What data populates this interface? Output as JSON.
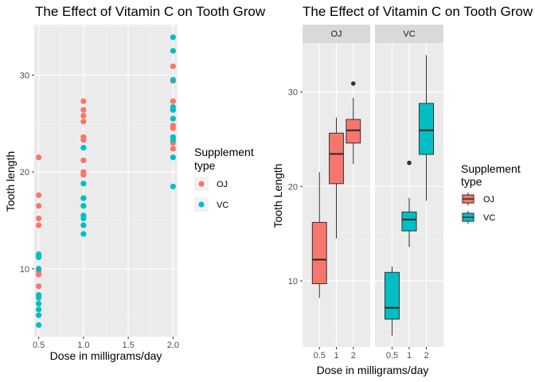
{
  "chart_data": [
    {
      "type": "scatter",
      "title": "The Effect of Vitamin C on Tooth Grow",
      "xlabel": "Dose in milligrams/day",
      "ylabel": "Tooth length",
      "x_ticks": [
        "0.5",
        "1.0",
        "1.5",
        "2.0"
      ],
      "y_ticks": [
        "10",
        "20",
        "30"
      ],
      "xlim": [
        0.45,
        2.05
      ],
      "ylim": [
        3,
        35.2
      ],
      "grid": true,
      "legend_placement": "right",
      "legend_title": [
        "Supplement",
        "type"
      ],
      "colors": {
        "OJ": "#F8766D",
        "VC": "#00BFC4"
      },
      "series": [
        {
          "name": "OJ",
          "points": [
            [
              0.5,
              15.2
            ],
            [
              0.5,
              21.5
            ],
            [
              0.5,
              17.6
            ],
            [
              0.5,
              9.7
            ],
            [
              0.5,
              14.5
            ],
            [
              0.5,
              10.0
            ],
            [
              0.5,
              8.2
            ],
            [
              0.5,
              9.4
            ],
            [
              0.5,
              16.5
            ],
            [
              0.5,
              9.7
            ],
            [
              1,
              19.7
            ],
            [
              1,
              23.3
            ],
            [
              1,
              23.6
            ],
            [
              1,
              26.4
            ],
            [
              1,
              20.0
            ],
            [
              1,
              25.2
            ],
            [
              1,
              25.8
            ],
            [
              1,
              21.2
            ],
            [
              1,
              14.5
            ],
            [
              1,
              27.3
            ],
            [
              2,
              25.5
            ],
            [
              2,
              26.4
            ],
            [
              2,
              22.4
            ],
            [
              2,
              24.5
            ],
            [
              2,
              24.8
            ],
            [
              2,
              30.9
            ],
            [
              2,
              26.4
            ],
            [
              2,
              27.3
            ],
            [
              2,
              29.4
            ],
            [
              2,
              23.0
            ]
          ]
        },
        {
          "name": "VC",
          "points": [
            [
              0.5,
              4.2
            ],
            [
              0.5,
              11.5
            ],
            [
              0.5,
              7.3
            ],
            [
              0.5,
              5.8
            ],
            [
              0.5,
              6.4
            ],
            [
              0.5,
              10.0
            ],
            [
              0.5,
              11.2
            ],
            [
              0.5,
              11.2
            ],
            [
              0.5,
              5.2
            ],
            [
              0.5,
              7.0
            ],
            [
              1,
              16.5
            ],
            [
              1,
              16.5
            ],
            [
              1,
              15.2
            ],
            [
              1,
              17.3
            ],
            [
              1,
              22.5
            ],
            [
              1,
              17.3
            ],
            [
              1,
              13.6
            ],
            [
              1,
              14.5
            ],
            [
              1,
              18.8
            ],
            [
              1,
              15.5
            ],
            [
              2,
              23.6
            ],
            [
              2,
              18.5
            ],
            [
              2,
              33.9
            ],
            [
              2,
              25.5
            ],
            [
              2,
              26.4
            ],
            [
              2,
              32.5
            ],
            [
              2,
              26.7
            ],
            [
              2,
              21.5
            ],
            [
              2,
              23.3
            ],
            [
              2,
              29.5
            ]
          ]
        }
      ]
    },
    {
      "type": "box",
      "title": "The Effect of Vitamin C on Tooth Grow",
      "xlabel": "Dose in milligrams/day",
      "ylabel": "Tooth Length",
      "facets": [
        "OJ",
        "VC"
      ],
      "categories": [
        "0.5",
        "1",
        "2"
      ],
      "y_ticks": [
        "10",
        "20",
        "30"
      ],
      "ylim": [
        3,
        35.2
      ],
      "grid": true,
      "legend_placement": "right",
      "legend_title": [
        "Supplement",
        "type"
      ],
      "colors": {
        "OJ": "#F8766D",
        "VC": "#00BFC4"
      },
      "boxes": {
        "OJ": [
          {
            "dose": "0.5",
            "lower": 8.2,
            "q1": 9.7,
            "median": 12.25,
            "q3": 16.2,
            "upper": 21.5,
            "outliers": []
          },
          {
            "dose": "1",
            "lower": 14.5,
            "q1": 20.3,
            "median": 23.45,
            "q3": 25.65,
            "upper": 27.3,
            "outliers": []
          },
          {
            "dose": "2",
            "lower": 22.4,
            "q1": 24.6,
            "median": 25.95,
            "q3": 27.1,
            "upper": 29.4,
            "outliers": [
              30.9
            ]
          }
        ],
        "VC": [
          {
            "dose": "0.5",
            "lower": 4.2,
            "q1": 5.95,
            "median": 7.15,
            "q3": 10.9,
            "upper": 11.5,
            "outliers": []
          },
          {
            "dose": "1",
            "lower": 13.6,
            "q1": 15.3,
            "median": 16.5,
            "q3": 17.3,
            "upper": 18.8,
            "outliers": [
              22.5
            ]
          },
          {
            "dose": "2",
            "lower": 18.5,
            "q1": 23.4,
            "median": 25.95,
            "q3": 28.8,
            "upper": 33.9,
            "outliers": []
          }
        ]
      }
    }
  ]
}
